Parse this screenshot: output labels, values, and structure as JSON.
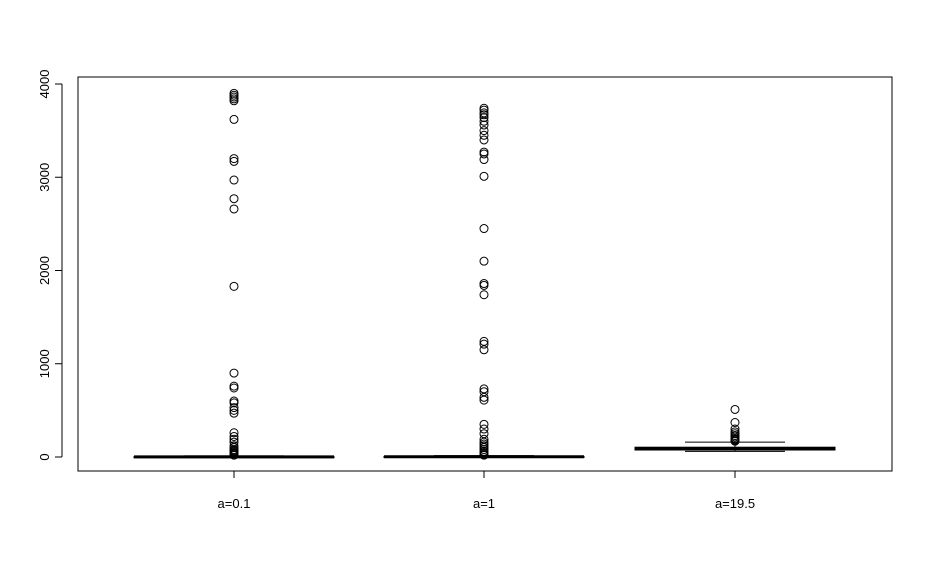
{
  "chart_data": {
    "type": "box",
    "title": "",
    "xlabel": "",
    "ylabel": "",
    "ylim": [
      -160,
      4000
    ],
    "y_ticks": [
      0,
      1000,
      2000,
      3000,
      4000
    ],
    "grid": false,
    "categories": [
      "a=0.1",
      "a=1",
      "a=19.5"
    ],
    "boxes": [
      {
        "category": "a=0.1",
        "whisker_low": 0,
        "q1": 0,
        "median": 1,
        "q3": 3,
        "whisker_high": 12,
        "outliers": [
          3900,
          3880,
          3860,
          3840,
          3820,
          3620,
          3200,
          3170,
          2970,
          2770,
          2660,
          1830,
          900,
          760,
          740,
          600,
          580,
          530,
          500,
          470,
          260,
          220,
          190,
          160,
          120,
          100,
          80,
          70,
          60,
          50,
          40,
          30,
          20
        ]
      },
      {
        "category": "a=1",
        "whisker_low": 0,
        "q1": 1,
        "median": 3,
        "q3": 6,
        "whisker_high": 15,
        "outliers": [
          3740,
          3720,
          3690,
          3670,
          3640,
          3600,
          3560,
          3500,
          3450,
          3400,
          3270,
          3250,
          3190,
          3010,
          2450,
          2100,
          1860,
          1840,
          1740,
          1240,
          1210,
          1150,
          730,
          700,
          640,
          610,
          350,
          300,
          250,
          190,
          160,
          140,
          120,
          100,
          80,
          60,
          45,
          30,
          20
        ]
      },
      {
        "category": "a=19.5",
        "whisker_low": 60,
        "q1": 75,
        "median": 90,
        "q3": 105,
        "whisker_high": 160,
        "outliers": [
          510,
          370,
          300,
          270,
          250,
          230,
          215,
          200,
          190,
          180,
          170
        ]
      }
    ]
  }
}
